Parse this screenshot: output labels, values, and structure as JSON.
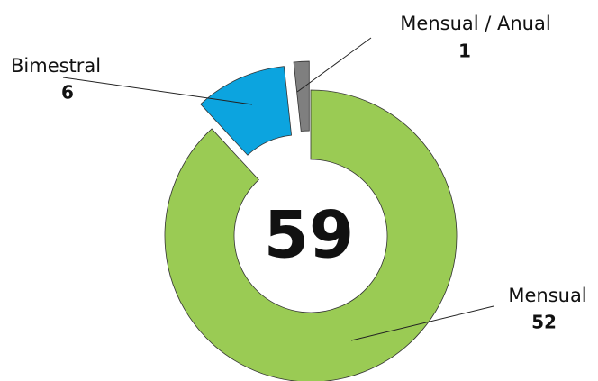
{
  "chart_data": {
    "type": "donut",
    "categories": [
      "Mensual",
      "Bimestral",
      "Mensual / Anual"
    ],
    "values": [
      52,
      6,
      1
    ],
    "colors": [
      "#9acb54",
      "#0ca4df",
      "#7f7f7f"
    ],
    "total": 59
  }
}
